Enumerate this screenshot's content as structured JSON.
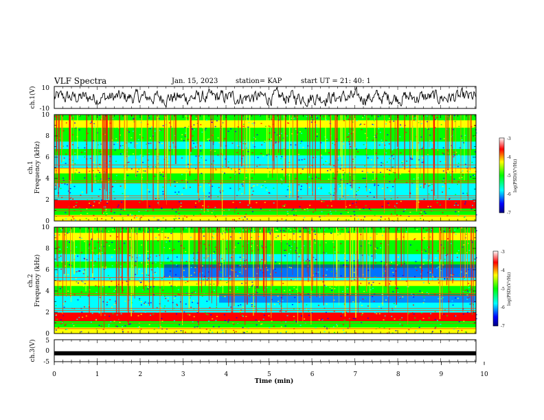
{
  "header": {
    "title": "VLF Spectra",
    "date": "Jan. 15, 2023",
    "station": "station= KAP",
    "start": "start  UT =   21: 40: 1"
  },
  "chart_data": [
    {
      "type": "line",
      "panel": "ch1-waveform",
      "ylabel": "ch.1(V)",
      "ylim": [
        -10,
        10
      ],
      "yticks": [
        "10",
        "-10"
      ],
      "xlim": [
        0,
        10
      ]
    },
    {
      "type": "heatmap",
      "panel": "ch1-spectrogram",
      "ylabel_top": "ch.1",
      "ylabel": "Frequency (kHz)",
      "ylim": [
        0,
        10
      ],
      "yticks": [
        "0",
        "2",
        "4",
        "6",
        "8",
        "10"
      ],
      "xlim": [
        0,
        10
      ],
      "colorbar": {
        "label": "log(PSD)(V²/Hz)",
        "range": [
          -7,
          -3
        ],
        "ticks": [
          "-3",
          "-4",
          "-5",
          "-6",
          "-7"
        ]
      }
    },
    {
      "type": "heatmap",
      "panel": "ch2-spectrogram",
      "ylabel_top": "ch.2",
      "ylabel": "Frequency (kHz)",
      "ylim": [
        0,
        10
      ],
      "yticks": [
        "0",
        "2",
        "4",
        "6",
        "8",
        "10"
      ],
      "xlim": [
        0,
        10
      ],
      "colorbar": {
        "label": "log(PSD)(V²/Hz)",
        "range": [
          -7,
          -3
        ],
        "ticks": [
          "-3",
          "-4",
          "-5",
          "-6",
          "-7"
        ]
      }
    },
    {
      "type": "line",
      "panel": "ch3-waveform",
      "ylabel": "ch.3(V)",
      "ylim": [
        -5,
        5
      ],
      "yticks": [
        "5",
        "0",
        "-5"
      ],
      "xlabel": "Time (min)",
      "xlim": [
        0,
        10
      ],
      "xticks": [
        "0",
        "1",
        "2",
        "3",
        "4",
        "5",
        "6",
        "7",
        "8",
        "9",
        "10"
      ],
      "value": -1.2
    }
  ],
  "colors": {
    "axis": "#000000",
    "palette": [
      "#ffffff",
      "#ff0000",
      "#ffff00",
      "#00ff00",
      "#00ffff",
      "#0000ff",
      "#000080"
    ]
  }
}
